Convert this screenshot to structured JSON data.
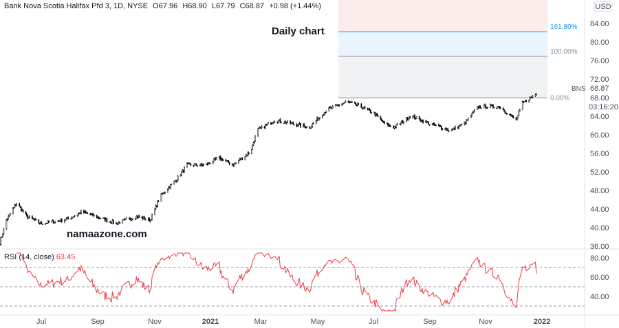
{
  "header": {
    "symbol": "Bank Nova Scotia Halifax Pfd 3, 1D, NYSE",
    "open": "O67.96",
    "high": "H68.90",
    "low": "L67.79",
    "close": "C68.87",
    "change": "+0.98 (+1.44%)"
  },
  "annotations": {
    "chart_label": "Daily chart",
    "watermark": "namaazone.com"
  },
  "rsi": {
    "label": "RSI (14, close)",
    "value": "63.45"
  },
  "price_axis": {
    "currency": "USD",
    "last_price": "68.87",
    "countdown": "03:16:20",
    "ticker_tag": "BNS"
  },
  "colors": {
    "up": "#000000",
    "rsi": "#f23645",
    "fib_top": "#fdecec",
    "fib_mid": "#eaf4fd",
    "fib_low": "#f1f2f4",
    "fib_1618": "#2196f3"
  },
  "chart_data": [
    {
      "type": "candlestick",
      "ylim": [
        36,
        88
      ],
      "grid": false,
      "yticks": [
        "84.00",
        "80.00",
        "76.00",
        "72.00",
        "68.00",
        "64.00",
        "60.00",
        "56.00",
        "52.00",
        "48.00",
        "44.00",
        "40.00",
        "36.00"
      ],
      "xticks": [
        "Jul",
        "Sep",
        "Nov",
        "2021",
        "Mar",
        "May",
        "Jul",
        "Sep",
        "Nov",
        "2022"
      ],
      "close_path": [
        [
          "2020-05-18",
          36.8
        ],
        [
          "2020-05-25",
          41.6
        ],
        [
          "2020-06-05",
          45.3
        ],
        [
          "2020-06-16",
          42.4
        ],
        [
          "2020-07-01",
          40.9
        ],
        [
          "2020-07-16",
          41.3
        ],
        [
          "2020-07-31",
          41.9
        ],
        [
          "2020-08-15",
          43.4
        ],
        [
          "2020-08-30",
          42.4
        ],
        [
          "2020-09-21",
          40.9
        ],
        [
          "2020-10-13",
          42.4
        ],
        [
          "2020-10-28",
          41.6
        ],
        [
          "2020-11-08",
          46.8
        ],
        [
          "2020-11-26",
          50.5
        ],
        [
          "2020-12-07",
          53.5
        ],
        [
          "2020-12-27",
          53.5
        ],
        [
          "2021-01-11",
          55.0
        ],
        [
          "2021-01-26",
          53.5
        ],
        [
          "2021-02-14",
          56.4
        ],
        [
          "2021-02-21",
          60.9
        ],
        [
          "2021-03-12",
          63.1
        ],
        [
          "2021-03-31",
          62.4
        ],
        [
          "2021-04-19",
          61.6
        ],
        [
          "2021-05-07",
          65.3
        ],
        [
          "2021-05-29",
          67.1
        ],
        [
          "2021-06-13",
          66.1
        ],
        [
          "2021-06-28",
          64.6
        ],
        [
          "2021-07-09",
          62.4
        ],
        [
          "2021-07-20",
          61.6
        ],
        [
          "2021-08-07",
          64.1
        ],
        [
          "2021-08-27",
          62.4
        ],
        [
          "2021-09-19",
          60.9
        ],
        [
          "2021-10-04",
          62.4
        ],
        [
          "2021-10-19",
          66.1
        ],
        [
          "2021-11-11",
          66.1
        ],
        [
          "2021-11-29",
          63.1
        ],
        [
          "2021-12-06",
          66.8
        ],
        [
          "2021-12-21",
          68.87
        ]
      ],
      "fibonacci": [
        {
          "level": "0.00%",
          "price": 67.96
        },
        {
          "level": "100.00%",
          "price": 76.9
        },
        {
          "level": "161.80%",
          "price": 82.2
        }
      ]
    },
    {
      "type": "line",
      "name": "RSI (14, close)",
      "ylim": [
        25,
        85
      ],
      "yticks": [
        "80.00",
        "60.00",
        "40.00"
      ],
      "bands": [
        70,
        50,
        30
      ],
      "last": 63.45
    }
  ]
}
